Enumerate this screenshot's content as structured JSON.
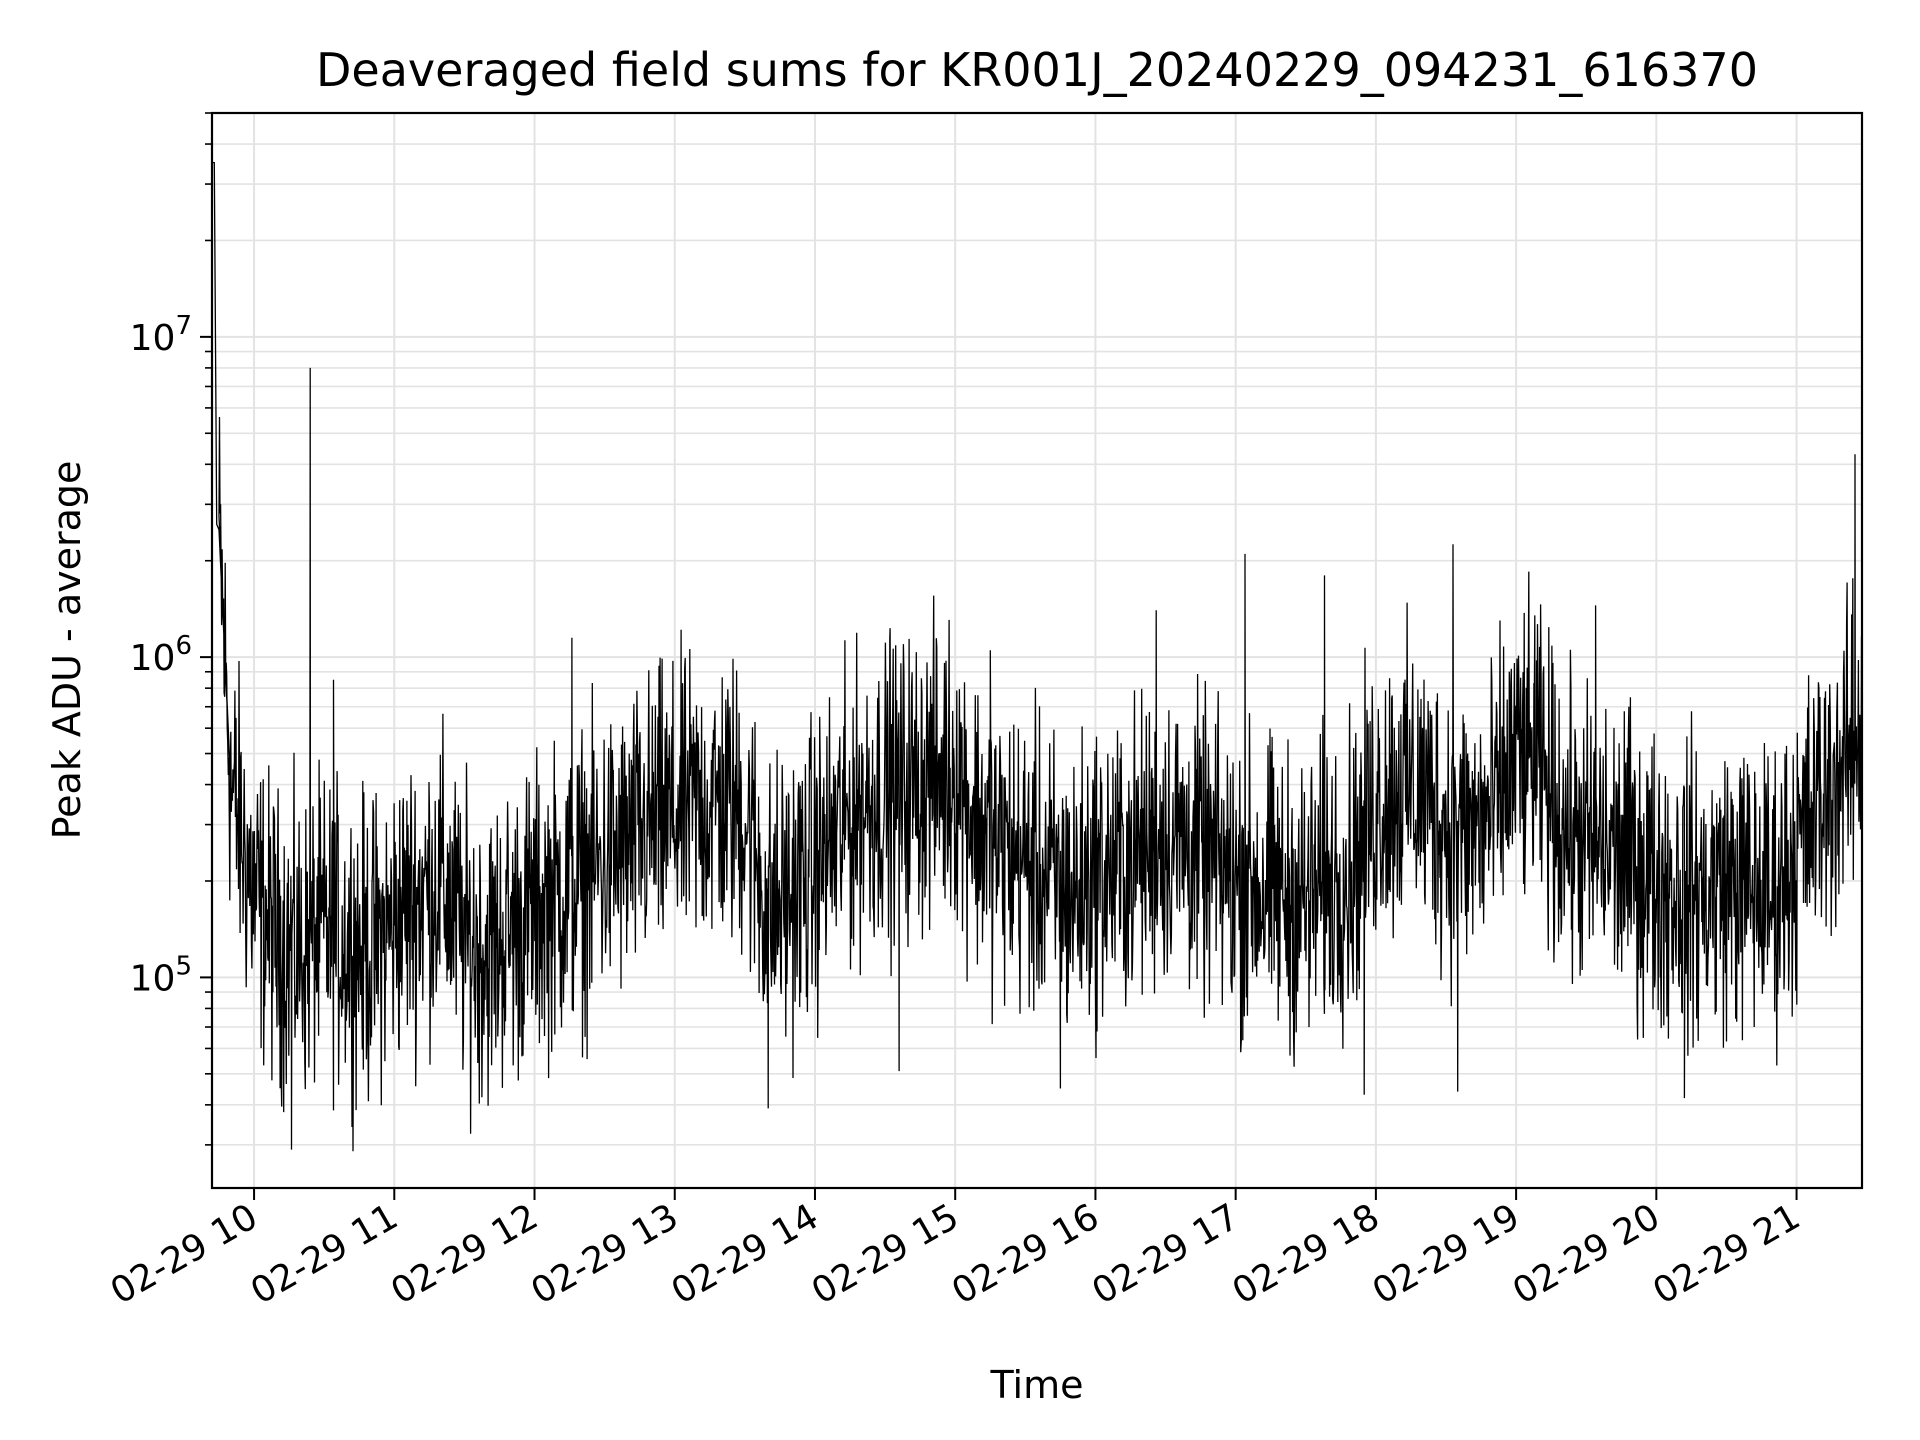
{
  "chart_data": {
    "type": "line",
    "title": "Deaveraged field sums for KR001J_20240229_094231_616370",
    "xlabel": "Time",
    "ylabel": "Peak ADU - average",
    "yscale": "log",
    "ylim": [
      22000,
      50000000
    ],
    "xlim": [
      "2024-02-29 09:42",
      "2024-02-29 21:28"
    ],
    "grid": true,
    "line_color": "#000000",
    "grid_color": "#e3e3e3",
    "x_ticks": [
      {
        "label": "02-29 10",
        "t": "2024-02-29 10:00"
      },
      {
        "label": "02-29 11",
        "t": "2024-02-29 11:00"
      },
      {
        "label": "02-29 12",
        "t": "2024-02-29 12:00"
      },
      {
        "label": "02-29 13",
        "t": "2024-02-29 13:00"
      },
      {
        "label": "02-29 14",
        "t": "2024-02-29 14:00"
      },
      {
        "label": "02-29 15",
        "t": "2024-02-29 15:00"
      },
      {
        "label": "02-29 16",
        "t": "2024-02-29 16:00"
      },
      {
        "label": "02-29 17",
        "t": "2024-02-29 17:00"
      },
      {
        "label": "02-29 18",
        "t": "2024-02-29 18:00"
      },
      {
        "label": "02-29 19",
        "t": "2024-02-29 19:00"
      },
      {
        "label": "02-29 20",
        "t": "2024-02-29 20:00"
      },
      {
        "label": "02-29 21",
        "t": "2024-02-29 21:00"
      }
    ],
    "y_ticks": [
      {
        "base": "10",
        "exp": "5",
        "value": 100000
      },
      {
        "base": "10",
        "exp": "6",
        "value": 1000000
      },
      {
        "base": "10",
        "exp": "7",
        "value": 10000000
      }
    ],
    "series": [
      {
        "x": [
          "2024-02-29 09:42",
          "2024-02-29 09:45",
          "2024-02-29 09:50",
          "2024-02-29 10:00",
          "2024-02-29 10:10",
          "2024-02-29 10:20",
          "2024-02-29 10:30",
          "2024-02-29 10:40",
          "2024-02-29 10:50",
          "2024-02-29 11:00",
          "2024-02-29 11:10",
          "2024-02-29 11:20",
          "2024-02-29 11:30",
          "2024-02-29 11:40",
          "2024-02-29 11:50",
          "2024-02-29 12:00",
          "2024-02-29 12:10",
          "2024-02-29 12:20",
          "2024-02-29 12:30",
          "2024-02-29 12:40",
          "2024-02-29 12:50",
          "2024-02-29 13:00",
          "2024-02-29 13:10",
          "2024-02-29 13:20",
          "2024-02-29 13:30",
          "2024-02-29 13:40",
          "2024-02-29 13:50",
          "2024-02-29 14:00",
          "2024-02-29 14:10",
          "2024-02-29 14:20",
          "2024-02-29 14:30",
          "2024-02-29 14:40",
          "2024-02-29 14:50",
          "2024-02-29 15:00",
          "2024-02-29 15:10",
          "2024-02-29 15:20",
          "2024-02-29 15:30",
          "2024-02-29 15:40",
          "2024-02-29 15:50",
          "2024-02-29 16:00",
          "2024-02-29 16:10",
          "2024-02-29 16:20",
          "2024-02-29 16:30",
          "2024-02-29 16:40",
          "2024-02-29 16:50",
          "2024-02-29 17:00",
          "2024-02-29 17:10",
          "2024-02-29 17:20",
          "2024-02-29 17:30",
          "2024-02-29 17:40",
          "2024-02-29 17:50",
          "2024-02-29 18:00",
          "2024-02-29 18:10",
          "2024-02-29 18:20",
          "2024-02-29 18:30",
          "2024-02-29 18:40",
          "2024-02-29 18:50",
          "2024-02-29 19:00",
          "2024-02-29 19:10",
          "2024-02-29 19:20",
          "2024-02-29 19:30",
          "2024-02-29 19:40",
          "2024-02-29 19:50",
          "2024-02-29 20:00",
          "2024-02-29 20:10",
          "2024-02-29 20:20",
          "2024-02-29 20:30",
          "2024-02-29 20:40",
          "2024-02-29 20:50",
          "2024-02-29 21:00",
          "2024-02-29 21:10",
          "2024-02-29 21:20",
          "2024-02-29 21:28"
        ],
        "y": [
          35000000,
          2500000,
          400000,
          180000,
          130000,
          120000,
          140000,
          130000,
          120000,
          150000,
          180000,
          200000,
          130000,
          120000,
          140000,
          160000,
          180000,
          200000,
          230000,
          250000,
          300000,
          320000,
          340000,
          350000,
          330000,
          160000,
          180000,
          220000,
          280000,
          350000,
          380000,
          400000,
          420000,
          450000,
          300000,
          250000,
          230000,
          200000,
          180000,
          210000,
          220000,
          250000,
          280000,
          260000,
          230000,
          200000,
          190000,
          180000,
          170000,
          200000,
          220000,
          350000,
          400000,
          380000,
          300000,
          280000,
          320000,
          500000,
          450000,
          300000,
          260000,
          250000,
          230000,
          200000,
          190000,
          180000,
          200000,
          190000,
          180000,
          250000,
          350000,
          450000,
          600000
        ]
      }
    ],
    "spikes": [
      {
        "t": "2024-02-29 09:43",
        "value": 35000000
      },
      {
        "t": "2024-02-29 09:44",
        "value": 2600000
      },
      {
        "t": "2024-02-29 10:24",
        "value": 8000000
      },
      {
        "t": "2024-02-29 10:34",
        "value": 850000
      },
      {
        "t": "2024-02-29 12:16",
        "value": 1150000
      },
      {
        "t": "2024-02-29 14:32",
        "value": 1150000
      },
      {
        "t": "2024-02-29 15:15",
        "value": 1050000
      },
      {
        "t": "2024-02-29 16:26",
        "value": 1400000
      },
      {
        "t": "2024-02-29 17:04",
        "value": 2100000
      },
      {
        "t": "2024-02-29 17:38",
        "value": 1800000
      },
      {
        "t": "2024-02-29 18:33",
        "value": 2250000
      },
      {
        "t": "2024-02-29 19:08",
        "value": 1350000
      },
      {
        "t": "2024-02-29 19:34",
        "value": 1450000
      },
      {
        "t": "2024-02-29 21:25",
        "value": 4300000
      }
    ],
    "dips": [
      {
        "t": "2024-02-29 10:16",
        "value": 29000
      },
      {
        "t": "2024-02-29 13:40",
        "value": 39000
      },
      {
        "t": "2024-02-29 14:36",
        "value": 51000
      },
      {
        "t": "2024-02-29 15:45",
        "value": 45000
      },
      {
        "t": "2024-02-29 17:55",
        "value": 43000
      },
      {
        "t": "2024-02-29 18:35",
        "value": 44000
      },
      {
        "t": "2024-02-29 20:12",
        "value": 42000
      }
    ]
  }
}
